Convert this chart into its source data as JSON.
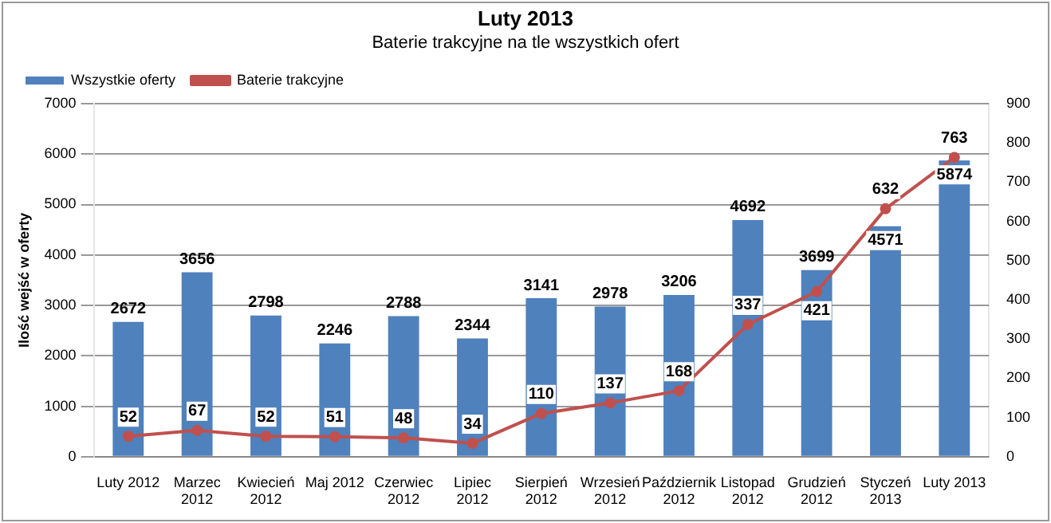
{
  "chart_data": {
    "type": "bar",
    "title": "Luty 2013",
    "subtitle": "Baterie trakcyjne na tle wszystkich ofert",
    "ylabel": "Ilość wejść w oferty",
    "categories": [
      "Luty 2012",
      "Marzec 2012",
      "Kwiecień 2012",
      "Maj 2012",
      "Czerwiec 2012",
      "Lipiec 2012",
      "Sierpień 2012",
      "Wrzesień 2012",
      "Październik 2012",
      "Listopad 2012",
      "Grudzień 2012",
      "Styczeń 2013",
      "Luty 2013"
    ],
    "series": [
      {
        "name": "Wszystkie oferty",
        "color": "#4f81bd",
        "values": [
          2672,
          3656,
          2798,
          2246,
          2788,
          2344,
          3141,
          2978,
          3206,
          4692,
          3699,
          4571,
          5874
        ]
      },
      {
        "name": "Baterie trakcyjne",
        "type": "line",
        "axis": "y2",
        "color": "#c0504d",
        "values": [
          52,
          67,
          52,
          51,
          48,
          34,
          110,
          137,
          168,
          337,
          421,
          632,
          763
        ]
      }
    ],
    "ylim": [
      0,
      7000
    ],
    "yticks": [
      0,
      1000,
      2000,
      3000,
      4000,
      5000,
      6000,
      7000
    ],
    "y2lim": [
      0,
      900
    ],
    "y2ticks": [
      0,
      100,
      200,
      300,
      400,
      500,
      600,
      700,
      800,
      900
    ],
    "grid": "y",
    "legend": "top left",
    "marker": "circle",
    "data_labels": true
  }
}
